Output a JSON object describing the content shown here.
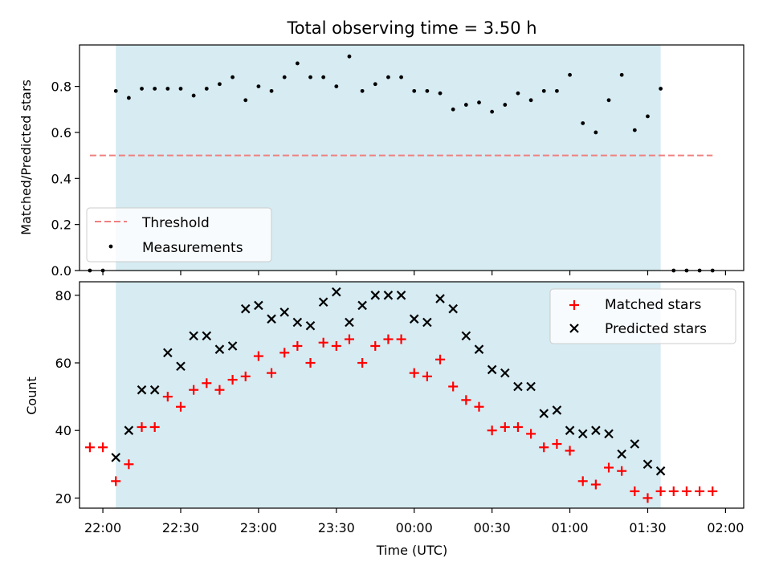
{
  "title": "Total observing time = 3.50 h",
  "chart_data": [
    {
      "type": "scatter",
      "panel": "top",
      "title": "Total observing time = 3.50 h",
      "ylabel": "Matched/Predicted stars",
      "xlabel": "",
      "xlim": [
        "21:51",
        "02:07"
      ],
      "ylim": [
        0,
        0.98
      ],
      "yticks": [
        0.0,
        0.2,
        0.4,
        0.6,
        0.8
      ],
      "ytick_labels": [
        "0.0",
        "0.2",
        "0.4",
        "0.6",
        "0.8"
      ],
      "shaded_region": [
        "22:05",
        "01:35"
      ],
      "legend": "lower-left",
      "series": [
        {
          "name": "Threshold",
          "kind": "line",
          "style": "dashed",
          "color": "#f08080",
          "x": [
            "21:55",
            "01:55"
          ],
          "y": [
            0.5,
            0.5
          ]
        },
        {
          "name": "Measurements",
          "kind": "scatter",
          "marker": "dot",
          "color": "#000000",
          "x": [
            "21:55",
            "22:00",
            "22:05",
            "22:10",
            "22:15",
            "22:20",
            "22:25",
            "22:30",
            "22:35",
            "22:40",
            "22:45",
            "22:50",
            "22:55",
            "23:00",
            "23:05",
            "23:10",
            "23:15",
            "23:20",
            "23:25",
            "23:30",
            "23:35",
            "23:40",
            "23:45",
            "23:50",
            "23:55",
            "00:00",
            "00:05",
            "00:10",
            "00:15",
            "00:20",
            "00:25",
            "00:30",
            "00:35",
            "00:40",
            "00:45",
            "00:50",
            "00:55",
            "01:00",
            "01:05",
            "01:10",
            "01:15",
            "01:20",
            "01:25",
            "01:30",
            "01:35",
            "01:40",
            "01:45",
            "01:50",
            "01:55"
          ],
          "y": [
            0.0,
            0.0,
            0.78,
            0.75,
            0.79,
            0.79,
            0.79,
            0.79,
            0.76,
            0.79,
            0.81,
            0.84,
            0.74,
            0.8,
            0.78,
            0.84,
            0.9,
            0.84,
            0.84,
            0.8,
            0.93,
            0.78,
            0.81,
            0.84,
            0.84,
            0.78,
            0.78,
            0.77,
            0.7,
            0.72,
            0.73,
            0.69,
            0.72,
            0.77,
            0.74,
            0.78,
            0.78,
            0.85,
            0.64,
            0.6,
            0.74,
            0.85,
            0.61,
            0.67,
            0.79,
            0.0,
            0.0,
            0.0,
            0.0
          ]
        }
      ]
    },
    {
      "type": "scatter",
      "panel": "bottom",
      "ylabel": "Count",
      "xlabel": "Time (UTC)",
      "xlim": [
        "21:51",
        "02:07"
      ],
      "ylim": [
        17,
        84
      ],
      "yticks": [
        20,
        40,
        60,
        80
      ],
      "ytick_labels": [
        "20",
        "40",
        "60",
        "80"
      ],
      "xticks": [
        "22:00",
        "22:30",
        "23:00",
        "23:30",
        "00:00",
        "00:30",
        "01:00",
        "01:30",
        "02:00"
      ],
      "shaded_region": [
        "22:05",
        "01:35"
      ],
      "legend": "top-right",
      "series": [
        {
          "name": "Matched stars",
          "marker": "plus",
          "color": "#ff0000",
          "x": [
            "21:55",
            "22:00",
            "22:05",
            "22:10",
            "22:15",
            "22:20",
            "22:25",
            "22:30",
            "22:35",
            "22:40",
            "22:45",
            "22:50",
            "22:55",
            "23:00",
            "23:05",
            "23:10",
            "23:15",
            "23:20",
            "23:25",
            "23:30",
            "23:35",
            "23:40",
            "23:45",
            "23:50",
            "23:55",
            "00:00",
            "00:05",
            "00:10",
            "00:15",
            "00:20",
            "00:25",
            "00:30",
            "00:35",
            "00:40",
            "00:45",
            "00:50",
            "00:55",
            "01:00",
            "01:05",
            "01:10",
            "01:15",
            "01:20",
            "01:25",
            "01:30",
            "01:35",
            "01:40",
            "01:45",
            "01:50",
            "01:55"
          ],
          "y": [
            35,
            35,
            25,
            30,
            41,
            41,
            50,
            47,
            52,
            54,
            52,
            55,
            56,
            62,
            57,
            63,
            65,
            60,
            66,
            65,
            67,
            60,
            65,
            67,
            67,
            57,
            56,
            61,
            53,
            49,
            47,
            40,
            41,
            41,
            39,
            35,
            36,
            34,
            25,
            24,
            29,
            28,
            22,
            20,
            22,
            22,
            22,
            22,
            22
          ]
        },
        {
          "name": "Predicted stars",
          "marker": "x",
          "color": "#000000",
          "x": [
            "22:05",
            "22:10",
            "22:15",
            "22:20",
            "22:25",
            "22:30",
            "22:35",
            "22:40",
            "22:45",
            "22:50",
            "22:55",
            "23:00",
            "23:05",
            "23:10",
            "23:15",
            "23:20",
            "23:25",
            "23:30",
            "23:35",
            "23:40",
            "23:45",
            "23:50",
            "23:55",
            "00:00",
            "00:05",
            "00:10",
            "00:15",
            "00:20",
            "00:25",
            "00:30",
            "00:35",
            "00:40",
            "00:45",
            "00:50",
            "00:55",
            "01:00",
            "01:05",
            "01:10",
            "01:15",
            "01:20",
            "01:25",
            "01:30",
            "01:35"
          ],
          "y": [
            32,
            40,
            52,
            52,
            63,
            59,
            68,
            68,
            64,
            65,
            76,
            77,
            73,
            75,
            72,
            71,
            78,
            81,
            72,
            77,
            80,
            80,
            80,
            73,
            72,
            79,
            76,
            68,
            64,
            58,
            57,
            53,
            53,
            45,
            46,
            40,
            39,
            40,
            39,
            33,
            36,
            30,
            28
          ]
        }
      ]
    }
  ]
}
